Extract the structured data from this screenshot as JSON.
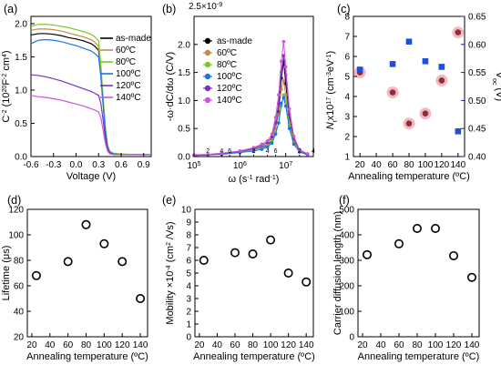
{
  "figure": {
    "panel_labels": [
      "(a)",
      "(b)",
      "(c)",
      "(d)",
      "(e)",
      "(f)"
    ],
    "colors": {
      "as-made": "#000000",
      "60C": "#c48a4c",
      "80C": "#77cc22",
      "100C": "#1a73e8",
      "120C": "#7a2fc4",
      "140C": "#cc55dd",
      "nt_marker": "#8b2e3a",
      "nt_halo": "#f4b8be",
      "voc_marker": "#1f4fe0",
      "voc_axis": "#1a1aaa",
      "open_marker": "#000000"
    }
  },
  "chart_data": [
    {
      "panel": "(a)",
      "type": "line",
      "xlabel": "Voltage (V)",
      "ylabel": "C⁻² (10²⁰F⁻²cm⁴)",
      "ylabel_main": "C",
      "ylabel_sup": "-2",
      "ylabel_units": "(10",
      "ylabel_units_sup1": "20",
      "ylabel_units_mid": "F",
      "ylabel_units_sup2": "-2",
      "ylabel_units_end": " cm",
      "ylabel_units_sup3": "4",
      "ylabel_close": ")",
      "xlim": [
        -0.6,
        1.0
      ],
      "ylim": [
        0,
        2.0
      ],
      "xticks": [
        "-0.6",
        "-0.3",
        "0.0",
        "0.3",
        "0.6",
        "0.9"
      ],
      "yticks": [
        "0.0",
        "0.5",
        "1.0",
        "1.5",
        "2.0"
      ],
      "series": [
        {
          "name": "as-made",
          "x": [
            -0.6,
            -0.5,
            -0.4,
            -0.3,
            -0.2,
            -0.1,
            0.0,
            0.1,
            0.2,
            0.25,
            0.3,
            0.33,
            0.36,
            0.39,
            0.42,
            0.45,
            0.5,
            0.6,
            0.8,
            1.0
          ],
          "y": [
            1.83,
            1.85,
            1.85,
            1.84,
            1.82,
            1.79,
            1.77,
            1.74,
            1.7,
            1.66,
            1.6,
            1.25,
            0.8,
            0.4,
            0.15,
            0.07,
            0.04,
            0.03,
            0.03,
            0.03
          ]
        },
        {
          "name": "60ºC",
          "x": [
            -0.6,
            -0.5,
            -0.4,
            -0.3,
            -0.2,
            -0.1,
            0.0,
            0.1,
            0.2,
            0.25,
            0.3,
            0.33,
            0.36,
            0.39,
            0.42,
            0.45,
            0.5,
            0.6,
            0.8,
            1.0
          ],
          "y": [
            1.9,
            1.92,
            1.92,
            1.91,
            1.89,
            1.86,
            1.83,
            1.8,
            1.76,
            1.72,
            1.66,
            1.3,
            0.85,
            0.42,
            0.16,
            0.07,
            0.04,
            0.03,
            0.03,
            0.03
          ]
        },
        {
          "name": "80ºC",
          "x": [
            -0.6,
            -0.5,
            -0.4,
            -0.3,
            -0.2,
            -0.1,
            0.0,
            0.1,
            0.2,
            0.25,
            0.3,
            0.33,
            0.36,
            0.39,
            0.42,
            0.45,
            0.5,
            0.6,
            0.8,
            1.0
          ],
          "y": [
            1.96,
            1.99,
            1.99,
            1.98,
            1.96,
            1.94,
            1.91,
            1.88,
            1.84,
            1.8,
            1.74,
            1.38,
            0.9,
            0.45,
            0.17,
            0.08,
            0.05,
            0.04,
            0.03,
            0.03
          ]
        },
        {
          "name": "100ºC",
          "x": [
            -0.6,
            -0.5,
            -0.4,
            -0.3,
            -0.2,
            -0.1,
            0.0,
            0.1,
            0.2,
            0.25,
            0.3,
            0.33,
            0.36,
            0.39,
            0.42,
            0.45,
            0.5,
            0.6,
            0.8,
            1.0
          ],
          "y": [
            1.7,
            1.75,
            1.76,
            1.75,
            1.73,
            1.7,
            1.67,
            1.63,
            1.59,
            1.55,
            1.5,
            1.2,
            0.78,
            0.38,
            0.14,
            0.06,
            0.04,
            0.03,
            0.03,
            0.03
          ]
        },
        {
          "name": "120ºC",
          "x": [
            -0.6,
            -0.5,
            -0.4,
            -0.3,
            -0.2,
            -0.1,
            0.0,
            0.1,
            0.2,
            0.25,
            0.3,
            0.33,
            0.36,
            0.39,
            0.42,
            0.45,
            0.5,
            0.6,
            0.8,
            1.0
          ],
          "y": [
            1.23,
            1.22,
            1.2,
            1.17,
            1.14,
            1.1,
            1.06,
            1.02,
            0.98,
            0.95,
            0.92,
            0.8,
            0.55,
            0.28,
            0.11,
            0.05,
            0.03,
            0.03,
            0.03,
            0.03
          ]
        },
        {
          "name": "140ºC",
          "x": [
            -0.6,
            -0.5,
            -0.4,
            -0.3,
            -0.2,
            -0.1,
            0.0,
            0.1,
            0.2,
            0.25,
            0.3,
            0.33,
            0.36,
            0.39,
            0.42,
            0.45,
            0.5,
            0.6,
            0.8,
            1.0
          ],
          "y": [
            0.92,
            0.9,
            0.89,
            0.87,
            0.85,
            0.82,
            0.79,
            0.76,
            0.72,
            0.7,
            0.67,
            0.58,
            0.4,
            0.2,
            0.08,
            0.04,
            0.03,
            0.03,
            0.03,
            0.03
          ]
        }
      ],
      "legend": "top-right"
    },
    {
      "panel": "(b)",
      "type": "line",
      "xlabel_main": "ω (s",
      "xlabel_sup": "-1",
      "xlabel_sub": "rad",
      "xlabel_sub_sup": "-1",
      "xlabel_close": ")",
      "ylabel": "-ω·dC/dω (C/V)",
      "y_multiplier_base": "2.5×10",
      "y_multiplier_exp": "-9",
      "x_scale": "log",
      "xlim": [
        100000,
        40000000
      ],
      "ylim": [
        0,
        2.5e-09
      ],
      "yticks": [
        "0.0",
        "0.5",
        "1.0",
        "1.5",
        "2.0"
      ],
      "xtick_major_base": "10",
      "xtick_major_exps": [
        "5",
        "6",
        "7"
      ],
      "xtick_minor_labels": [
        "2",
        "4",
        "6",
        "2",
        "4",
        "6",
        "2",
        "4"
      ],
      "series": [
        {
          "name": "as-made",
          "x": [
            100000,
            200000,
            400000,
            1000000,
            2000000,
            3000000,
            4000000,
            5000000,
            6000000,
            7000000,
            8000000,
            9000000,
            10000000,
            12000000,
            15000000,
            20000000,
            30000000
          ],
          "y": [
            2e-11,
            3e-11,
            5e-11,
            8e-11,
            1.2e-10,
            1.6e-10,
            2e-10,
            3e-10,
            5e-10,
            8e-10,
            1.4e-09,
            1.7e-09,
            1.3e-09,
            7e-10,
            3e-10,
            1e-10,
            4e-11
          ]
        },
        {
          "name": "60ºC",
          "x": [
            100000,
            200000,
            400000,
            1000000,
            2000000,
            3000000,
            4000000,
            5000000,
            6000000,
            7000000,
            8000000,
            9000000,
            10000000,
            12000000,
            15000000,
            20000000,
            30000000
          ],
          "y": [
            2e-11,
            3e-11,
            5e-11,
            9e-11,
            1.3e-10,
            1.8e-10,
            2.2e-10,
            3e-10,
            5e-10,
            7.5e-10,
            1.2e-09,
            1.35e-09,
            1.1e-09,
            6e-10,
            2.7e-10,
            1e-10,
            4e-11
          ]
        },
        {
          "name": "80ºC",
          "x": [
            100000,
            200000,
            400000,
            1000000,
            2000000,
            3000000,
            4000000,
            5000000,
            6000000,
            7000000,
            8000000,
            9000000,
            10000000,
            12000000,
            15000000,
            20000000,
            30000000
          ],
          "y": [
            2e-11,
            3e-11,
            5e-11,
            8e-11,
            1.2e-10,
            1.5e-10,
            1.9e-10,
            2.6e-10,
            4.2e-10,
            6e-10,
            9e-10,
            1.1e-09,
            1e-09,
            5.5e-10,
            2.5e-10,
            9e-11,
            3e-11
          ]
        },
        {
          "name": "100ºC",
          "x": [
            100000,
            200000,
            400000,
            1000000,
            2000000,
            3000000,
            4000000,
            5000000,
            6000000,
            7000000,
            8000000,
            9000000,
            10000000,
            12000000,
            15000000,
            20000000,
            30000000
          ],
          "y": [
            2e-11,
            3e-11,
            4e-11,
            7e-11,
            1e-10,
            1.3e-10,
            1.7e-10,
            2.4e-10,
            4e-10,
            6e-10,
            9.5e-10,
            1.05e-09,
            9e-10,
            5e-10,
            2.2e-10,
            8e-11,
            3e-11
          ]
        },
        {
          "name": "120ºC",
          "x": [
            100000,
            200000,
            400000,
            1000000,
            2000000,
            3000000,
            4000000,
            5000000,
            6000000,
            7000000,
            8000000,
            9000000,
            10000000,
            12000000,
            15000000,
            20000000,
            30000000
          ],
          "y": [
            2e-11,
            3e-11,
            5e-11,
            9e-11,
            1.4e-10,
            2e-10,
            2.5e-10,
            3.5e-10,
            6e-10,
            9.5e-10,
            1.5e-09,
            1.8e-09,
            1.45e-09,
            7.5e-10,
            3.2e-10,
            1.1e-10,
            4e-11
          ]
        },
        {
          "name": "140ºC",
          "x": [
            100000,
            200000,
            400000,
            1000000,
            2000000,
            3000000,
            4000000,
            5000000,
            6000000,
            7000000,
            8000000,
            9000000,
            10000000,
            12000000,
            15000000,
            20000000,
            30000000
          ],
          "y": [
            3e-11,
            4e-11,
            6e-11,
            1e-10,
            1.6e-10,
            2.2e-10,
            2.8e-10,
            4e-10,
            7e-10,
            1.1e-09,
            1.7e-09,
            2.05e-09,
            1.6e-09,
            8.5e-10,
            3.6e-10,
            1.2e-10,
            5e-11
          ]
        }
      ],
      "legend": "top-left"
    },
    {
      "panel": "(c)",
      "type": "scatter",
      "xlabel": "Annealing temperature (ºC)",
      "ylabel_left_main": "N",
      "ylabel_left_sub": "t",
      "ylabel_left_x": "x10",
      "ylabel_left_sup1": "17",
      "ylabel_left_units": " (cm",
      "ylabel_left_sup2": "-3",
      "ylabel_left_units2": "eV",
      "ylabel_left_sup3": "-1",
      "ylabel_left_close": ")",
      "ylabel_right_main": "V",
      "ylabel_right_sub": "oc",
      "ylabel_right_units": " (V)",
      "x": [
        20,
        60,
        80,
        100,
        120,
        140
      ],
      "xticks": [
        "20",
        "40",
        "60",
        "80",
        "100",
        "120",
        "140"
      ],
      "xlim": [
        12,
        148
      ],
      "y_left": [
        5.2,
        4.2,
        2.65,
        3.15,
        4.8,
        7.2
      ],
      "ylim_left": [
        1,
        8
      ],
      "yticks_left": [
        "1",
        "2",
        "3",
        "4",
        "5",
        "6",
        "7",
        "8"
      ],
      "y_right": [
        0.555,
        0.565,
        0.605,
        0.57,
        0.56,
        0.445
      ],
      "ylim_right": [
        0.4,
        0.65
      ],
      "yticks_right": [
        "0.40",
        "0.45",
        "0.50",
        "0.55",
        "0.60",
        "0.65"
      ]
    },
    {
      "panel": "(d)",
      "type": "scatter",
      "xlabel": "Annealing temperature (ºC)",
      "ylabel": "Lifetime  (μs)",
      "x": [
        25,
        60,
        80,
        100,
        120,
        140
      ],
      "values": [
        68,
        79,
        108,
        93,
        79,
        50
      ],
      "xlim": [
        15,
        148
      ],
      "ylim": [
        20,
        120
      ],
      "xticks": [
        "20",
        "40",
        "60",
        "80",
        "100",
        "120",
        "140"
      ],
      "yticks": [
        "20",
        "40",
        "60",
        "80",
        "100",
        "120"
      ]
    },
    {
      "panel": "(e)",
      "type": "scatter",
      "xlabel": "Annealing temperature (ºC)",
      "ylabel_main": "Mobility ×10",
      "ylabel_sup": "-4",
      "ylabel_units": " (cm",
      "ylabel_sup2": "2",
      "ylabel_end": " /Vs)",
      "x": [
        25,
        60,
        80,
        100,
        120,
        140
      ],
      "values": [
        6.0,
        6.6,
        6.5,
        7.6,
        5.0,
        4.3
      ],
      "xlim": [
        15,
        148
      ],
      "ylim": [
        0,
        10
      ],
      "xticks": [
        "20",
        "40",
        "60",
        "80",
        "100",
        "120",
        "140"
      ],
      "yticks": [
        "0",
        "1",
        "2",
        "3",
        "4",
        "5",
        "6",
        "7",
        "8",
        "9",
        "10"
      ]
    },
    {
      "panel": "(f)",
      "type": "scatter",
      "xlabel": "Annealing temperature (ºC)",
      "ylabel": "Carrier diffusion length (nm)",
      "x": [
        25,
        60,
        80,
        100,
        120,
        140
      ],
      "values": [
        322,
        365,
        425,
        425,
        318,
        233
      ],
      "xlim": [
        15,
        148
      ],
      "ylim": [
        0,
        500
      ],
      "xticks": [
        "20",
        "40",
        "60",
        "80",
        "100",
        "120",
        "140"
      ],
      "yticks": [
        "0",
        "100",
        "200",
        "300",
        "400",
        "500"
      ]
    }
  ]
}
